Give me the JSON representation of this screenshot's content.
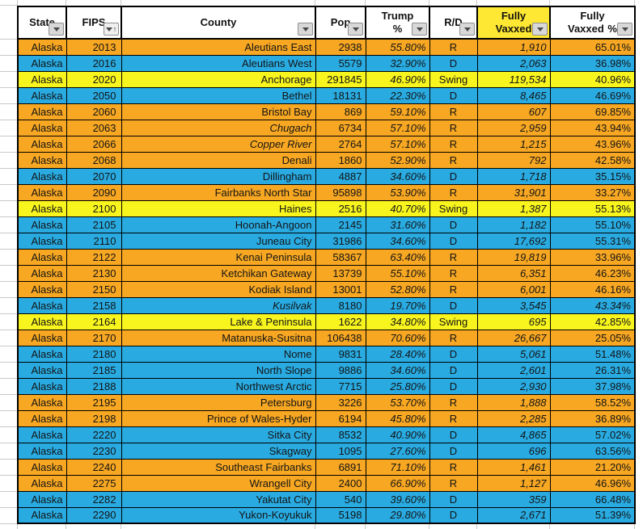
{
  "colors": {
    "R": "#F7A722",
    "D": "#29ABE2",
    "Swing": "#F8F51E",
    "header_highlight": "#FFE833"
  },
  "table": {
    "headers": [
      {
        "key": "state",
        "label": "State",
        "filter": true
      },
      {
        "key": "fips",
        "label": "FIPS",
        "filter": true,
        "sorted": "ascending"
      },
      {
        "key": "county",
        "label": "County",
        "filter": true
      },
      {
        "key": "pop",
        "label": "Pop",
        "filter": true
      },
      {
        "key": "trump_pct",
        "label": "Trump %",
        "filter": true
      },
      {
        "key": "rd",
        "label": "R/D",
        "filter": true
      },
      {
        "key": "fully_vaxxed",
        "label": "Fully Vaxxed",
        "filter": true,
        "highlight": true
      },
      {
        "key": "fully_vaxxed_pct",
        "label": "Fully Vaxxed %",
        "filter": true
      }
    ],
    "rows": [
      {
        "state": "Alaska",
        "fips": "2013",
        "county": "Aleutians East",
        "pop": "2938",
        "trump_pct": "55.80%",
        "rd": "R",
        "fully_vaxxed": "1,910",
        "fully_vaxxed_pct": "65.01%"
      },
      {
        "state": "Alaska",
        "fips": "2016",
        "county": "Aleutians West",
        "pop": "5579",
        "trump_pct": "32.90%",
        "rd": "D",
        "fully_vaxxed": "2,063",
        "fully_vaxxed_pct": "36.98%"
      },
      {
        "state": "Alaska",
        "fips": "2020",
        "county": "Anchorage",
        "pop": "291845",
        "trump_pct": "46.90%",
        "rd": "Swing",
        "fully_vaxxed": "119,534",
        "fully_vaxxed_pct": "40.96%"
      },
      {
        "state": "Alaska",
        "fips": "2050",
        "county": "Bethel",
        "pop": "18131",
        "trump_pct": "22.30%",
        "rd": "D",
        "fully_vaxxed": "8,465",
        "fully_vaxxed_pct": "46.69%"
      },
      {
        "state": "Alaska",
        "fips": "2060",
        "county": "Bristol Bay",
        "pop": "869",
        "trump_pct": "59.10%",
        "rd": "R",
        "fully_vaxxed": "607",
        "fully_vaxxed_pct": "69.85%"
      },
      {
        "state": "Alaska",
        "fips": "2063",
        "county": "Chugach",
        "pop": "6734",
        "trump_pct": "57.10%",
        "rd": "R",
        "fully_vaxxed": "2,959",
        "fully_vaxxed_pct": "43.94%",
        "county_italic": true
      },
      {
        "state": "Alaska",
        "fips": "2066",
        "county": "Copper River",
        "pop": "2764",
        "trump_pct": "57.10%",
        "rd": "R",
        "fully_vaxxed": "1,215",
        "fully_vaxxed_pct": "43.96%",
        "county_italic": true
      },
      {
        "state": "Alaska",
        "fips": "2068",
        "county": "Denali",
        "pop": "1860",
        "trump_pct": "52.90%",
        "rd": "R",
        "fully_vaxxed": "792",
        "fully_vaxxed_pct": "42.58%"
      },
      {
        "state": "Alaska",
        "fips": "2070",
        "county": "Dillingham",
        "pop": "4887",
        "trump_pct": "34.60%",
        "rd": "D",
        "fully_vaxxed": "1,718",
        "fully_vaxxed_pct": "35.15%"
      },
      {
        "state": "Alaska",
        "fips": "2090",
        "county": "Fairbanks North Star",
        "pop": "95898",
        "trump_pct": "53.90%",
        "rd": "R",
        "fully_vaxxed": "31,901",
        "fully_vaxxed_pct": "33.27%"
      },
      {
        "state": "Alaska",
        "fips": "2100",
        "county": "Haines",
        "pop": "2516",
        "trump_pct": "40.70%",
        "rd": "Swing",
        "fully_vaxxed": "1,387",
        "fully_vaxxed_pct": "55.13%"
      },
      {
        "state": "Alaska",
        "fips": "2105",
        "county": "Hoonah-Angoon",
        "pop": "2145",
        "trump_pct": "31.60%",
        "rd": "D",
        "fully_vaxxed": "1,182",
        "fully_vaxxed_pct": "55.10%"
      },
      {
        "state": "Alaska",
        "fips": "2110",
        "county": "Juneau City",
        "pop": "31986",
        "trump_pct": "34.60%",
        "rd": "D",
        "fully_vaxxed": "17,692",
        "fully_vaxxed_pct": "55.31%"
      },
      {
        "state": "Alaska",
        "fips": "2122",
        "county": "Kenai Peninsula",
        "pop": "58367",
        "trump_pct": "63.40%",
        "rd": "R",
        "fully_vaxxed": "19,819",
        "fully_vaxxed_pct": "33.96%"
      },
      {
        "state": "Alaska",
        "fips": "2130",
        "county": "Ketchikan Gateway",
        "pop": "13739",
        "trump_pct": "55.10%",
        "rd": "R",
        "fully_vaxxed": "6,351",
        "fully_vaxxed_pct": "46.23%"
      },
      {
        "state": "Alaska",
        "fips": "2150",
        "county": "Kodiak Island",
        "pop": "13001",
        "trump_pct": "52.80%",
        "rd": "R",
        "fully_vaxxed": "6,001",
        "fully_vaxxed_pct": "46.16%"
      },
      {
        "state": "Alaska",
        "fips": "2158",
        "county": "Kusilvak",
        "pop": "8180",
        "trump_pct": "19.70%",
        "rd": "D",
        "fully_vaxxed": "3,545",
        "fully_vaxxed_pct": "43.34%",
        "county_italic": true,
        "vaxxed_pct_italic": true
      },
      {
        "state": "Alaska",
        "fips": "2164",
        "county": "Lake & Peninsula",
        "pop": "1622",
        "trump_pct": "34.80%",
        "rd": "Swing",
        "fully_vaxxed": "695",
        "fully_vaxxed_pct": "42.85%"
      },
      {
        "state": "Alaska",
        "fips": "2170",
        "county": "Matanuska-Susitna",
        "pop": "106438",
        "trump_pct": "70.60%",
        "rd": "R",
        "fully_vaxxed": "26,667",
        "fully_vaxxed_pct": "25.05%"
      },
      {
        "state": "Alaska",
        "fips": "2180",
        "county": "Nome",
        "pop": "9831",
        "trump_pct": "28.40%",
        "rd": "D",
        "fully_vaxxed": "5,061",
        "fully_vaxxed_pct": "51.48%"
      },
      {
        "state": "Alaska",
        "fips": "2185",
        "county": "North Slope",
        "pop": "9886",
        "trump_pct": "34.60%",
        "rd": "D",
        "fully_vaxxed": "2,601",
        "fully_vaxxed_pct": "26.31%"
      },
      {
        "state": "Alaska",
        "fips": "2188",
        "county": "Northwest Arctic",
        "pop": "7715",
        "trump_pct": "25.80%",
        "rd": "D",
        "fully_vaxxed": "2,930",
        "fully_vaxxed_pct": "37.98%"
      },
      {
        "state": "Alaska",
        "fips": "2195",
        "county": "Petersburg",
        "pop": "3226",
        "trump_pct": "53.70%",
        "rd": "R",
        "fully_vaxxed": "1,888",
        "fully_vaxxed_pct": "58.52%"
      },
      {
        "state": "Alaska",
        "fips": "2198",
        "county": "Prince of Wales-Hyder",
        "pop": "6194",
        "trump_pct": "45.80%",
        "rd": "R",
        "fully_vaxxed": "2,285",
        "fully_vaxxed_pct": "36.89%"
      },
      {
        "state": "Alaska",
        "fips": "2220",
        "county": "Sitka City",
        "pop": "8532",
        "trump_pct": "40.90%",
        "rd": "D",
        "fully_vaxxed": "4,865",
        "fully_vaxxed_pct": "57.02%"
      },
      {
        "state": "Alaska",
        "fips": "2230",
        "county": "Skagway",
        "pop": "1095",
        "trump_pct": "27.60%",
        "rd": "D",
        "fully_vaxxed": "696",
        "fully_vaxxed_pct": "63.56%"
      },
      {
        "state": "Alaska",
        "fips": "2240",
        "county": "Southeast Fairbanks",
        "pop": "6891",
        "trump_pct": "71.10%",
        "rd": "R",
        "fully_vaxxed": "1,461",
        "fully_vaxxed_pct": "21.20%"
      },
      {
        "state": "Alaska",
        "fips": "2275",
        "county": "Wrangell City",
        "pop": "2400",
        "trump_pct": "66.90%",
        "rd": "R",
        "fully_vaxxed": "1,127",
        "fully_vaxxed_pct": "46.96%"
      },
      {
        "state": "Alaska",
        "fips": "2282",
        "county": "Yakutat City",
        "pop": "540",
        "trump_pct": "39.60%",
        "rd": "D",
        "fully_vaxxed": "359",
        "fully_vaxxed_pct": "66.48%"
      },
      {
        "state": "Alaska",
        "fips": "2290",
        "county": "Yukon-Koyukuk",
        "pop": "5198",
        "trump_pct": "29.80%",
        "rd": "D",
        "fully_vaxxed": "2,671",
        "fully_vaxxed_pct": "51.39%"
      }
    ]
  }
}
